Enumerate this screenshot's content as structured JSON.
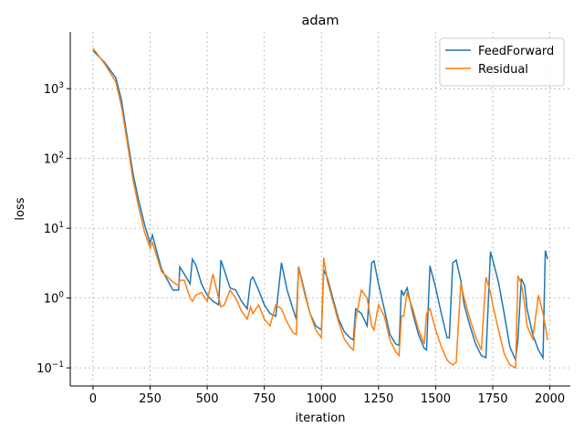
{
  "chart_data": {
    "type": "line",
    "title": "adam",
    "x_label": "iteration",
    "y_label": "loss",
    "log_y": true,
    "grid": true,
    "legend": "upper right",
    "x": [
      0,
      50,
      100,
      125,
      150,
      175,
      200,
      225,
      250,
      260,
      300,
      350,
      375,
      380,
      400,
      425,
      435,
      450,
      475,
      500,
      525,
      550,
      560,
      575,
      600,
      625,
      650,
      675,
      690,
      700,
      725,
      750,
      775,
      800,
      825,
      850,
      875,
      890,
      900,
      925,
      950,
      975,
      1000,
      1010,
      1025,
      1050,
      1075,
      1100,
      1125,
      1140,
      1150,
      1175,
      1200,
      1220,
      1230,
      1250,
      1275,
      1300,
      1325,
      1340,
      1350,
      1360,
      1375,
      1400,
      1425,
      1450,
      1460,
      1475,
      1500,
      1525,
      1550,
      1560,
      1575,
      1590,
      1610,
      1625,
      1650,
      1675,
      1700,
      1720,
      1740,
      1750,
      1775,
      1800,
      1825,
      1850,
      1860,
      1875,
      1890,
      1900,
      1925,
      1950,
      1970,
      1980,
      1990
    ],
    "series": [
      {
        "name": "FeedForward",
        "color": "#1f77b4",
        "values": [
          3500,
          2400,
          1430,
          680,
          200,
          61,
          25,
          11.6,
          6.1,
          8,
          2.6,
          1.3,
          1.3,
          2.8,
          2.2,
          1.6,
          3.6,
          3.0,
          1.6,
          1.1,
          0.9,
          0.8,
          3.5,
          2.5,
          1.4,
          1.3,
          0.9,
          0.7,
          1.8,
          2.0,
          1.3,
          0.8,
          0.6,
          0.55,
          3.2,
          1.3,
          0.7,
          0.5,
          2.8,
          1.3,
          0.6,
          0.4,
          0.35,
          2.5,
          2.0,
          1.0,
          0.5,
          0.33,
          0.27,
          0.25,
          0.7,
          0.6,
          0.4,
          3.2,
          3.4,
          1.6,
          0.7,
          0.3,
          0.22,
          0.21,
          1.3,
          1.1,
          1.4,
          0.6,
          0.3,
          0.19,
          0.18,
          2.9,
          1.4,
          0.6,
          0.27,
          0.27,
          3.2,
          3.5,
          1.8,
          0.8,
          0.4,
          0.22,
          0.15,
          0.14,
          4.6,
          3.5,
          1.7,
          0.6,
          0.2,
          0.13,
          0.25,
          1.9,
          1.5,
          0.7,
          0.3,
          0.18,
          0.14,
          4.8,
          3.6
        ]
      },
      {
        "name": "Residual",
        "color": "#ff7f0e",
        "values": [
          3800,
          2300,
          1250,
          550,
          170,
          50,
          20,
          9,
          5.2,
          6.2,
          2.4,
          1.7,
          1.5,
          1.8,
          1.8,
          1.0,
          0.9,
          1.1,
          1.2,
          0.9,
          2.2,
          1.0,
          0.75,
          0.8,
          1.3,
          1.0,
          0.65,
          0.5,
          0.75,
          0.6,
          0.8,
          0.5,
          0.4,
          0.8,
          0.7,
          0.45,
          0.32,
          0.3,
          2.7,
          1.2,
          0.6,
          0.35,
          0.27,
          3.8,
          1.8,
          0.9,
          0.45,
          0.26,
          0.2,
          0.18,
          0.5,
          1.3,
          1.0,
          0.4,
          0.35,
          0.8,
          0.55,
          0.25,
          0.17,
          0.15,
          0.55,
          0.55,
          1.2,
          0.7,
          0.35,
          0.22,
          0.6,
          0.7,
          0.35,
          0.2,
          0.13,
          0.12,
          0.11,
          0.12,
          1.6,
          1.0,
          0.5,
          0.28,
          0.18,
          2.0,
          1.2,
          0.8,
          0.35,
          0.16,
          0.11,
          0.1,
          2.1,
          1.6,
          0.8,
          0.4,
          0.26,
          1.1,
          0.6,
          0.4,
          0.25
        ]
      }
    ],
    "xlim": [
      -99.5,
      2089.5
    ],
    "xticks": [
      0,
      250,
      500,
      750,
      1000,
      1250,
      1500,
      1750,
      2000
    ],
    "ylim": [
      0.055,
      6500
    ],
    "yticks": [
      {
        "value": 0.1,
        "label": "10",
        "exponent": "−1"
      },
      {
        "value": 1,
        "label": "10",
        "exponent": "0"
      },
      {
        "value": 10,
        "label": "10",
        "exponent": "1"
      },
      {
        "value": 100,
        "label": "10",
        "exponent": "2"
      },
      {
        "value": 1000,
        "label": "10",
        "exponent": "3"
      }
    ]
  }
}
